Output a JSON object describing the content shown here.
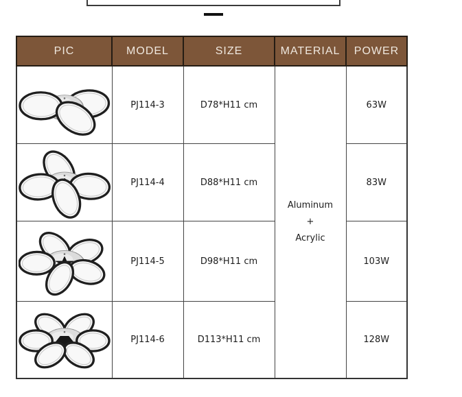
{
  "table": {
    "headers": [
      "PIC",
      "MODEL",
      "SIZE",
      "MATERIAL",
      "POWER"
    ],
    "material_lines": [
      "Aluminum",
      "+",
      "Acrylic"
    ],
    "rows": [
      {
        "model": "PJ114-3",
        "size": "D78*H11 cm",
        "power": "63W",
        "rings": 3,
        "image": "ceiling-lamp-3-rings"
      },
      {
        "model": "PJ114-4",
        "size": "D88*H11 cm",
        "power": "83W",
        "rings": 4,
        "image": "ceiling-lamp-4-rings"
      },
      {
        "model": "PJ114-5",
        "size": "D98*H11 cm",
        "power": "103W",
        "rings": 5,
        "image": "ceiling-lamp-5-rings"
      },
      {
        "model": "PJ114-6",
        "size": "D113*H11 cm",
        "power": "128W",
        "rings": 6,
        "image": "ceiling-lamp-6-rings"
      }
    ],
    "colors": {
      "header_bg": "#7d5639",
      "header_text": "#efe8df",
      "grid_border": "#424242",
      "ring_stroke": "#1f1f1f"
    }
  }
}
